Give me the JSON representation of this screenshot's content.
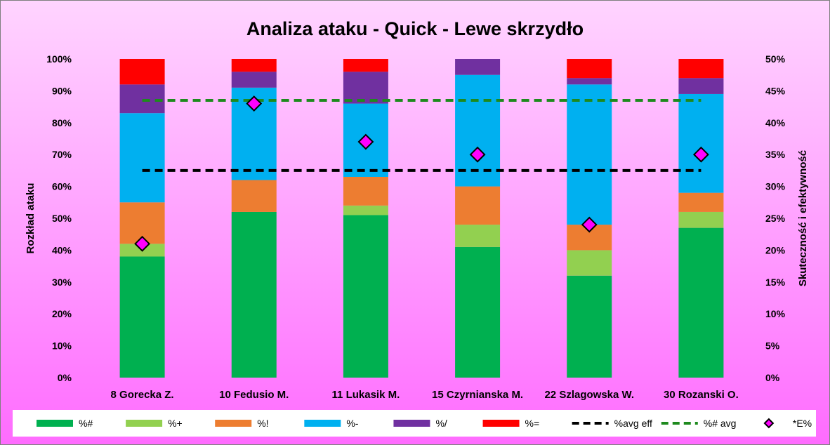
{
  "chart_data": {
    "type": "bar",
    "stacked": true,
    "title": "Analiza ataku - Quick - Lewe skrzydło",
    "ylabel_left": "Rozkład ataku",
    "ylabel_right": "Skuteczność i efektywność",
    "ylim_left": [
      0,
      100
    ],
    "ylim_right": [
      0,
      50
    ],
    "yticks_left": [
      "0%",
      "10%",
      "20%",
      "30%",
      "40%",
      "50%",
      "60%",
      "70%",
      "80%",
      "90%",
      "100%"
    ],
    "yticks_right": [
      "0%",
      "5%",
      "10%",
      "15%",
      "20%",
      "25%",
      "30%",
      "35%",
      "40%",
      "45%",
      "50%"
    ],
    "grid": false,
    "legend_position": "bottom",
    "categories": [
      "8 Gorecka Z.",
      "10 Fedusio M.",
      "11 Lukasik M.",
      "15 Czyrnianska M.",
      "22 Szlagowska W.",
      "30 Rozanski O."
    ],
    "series": [
      {
        "name": "%#",
        "color": "#00b050",
        "values": [
          38,
          52,
          51,
          41,
          32,
          47
        ]
      },
      {
        "name": "%+",
        "color": "#92d050",
        "values": [
          4,
          0,
          3,
          7,
          8,
          5
        ]
      },
      {
        "name": "%!",
        "color": "#ed7d31",
        "values": [
          13,
          10,
          9,
          12,
          8,
          6
        ]
      },
      {
        "name": "%-",
        "color": "#00b0f0",
        "values": [
          28,
          29,
          23,
          35,
          44,
          31
        ]
      },
      {
        "name": "%/",
        "color": "#7030a0",
        "values": [
          9,
          5,
          10,
          5,
          2,
          5
        ]
      },
      {
        "name": "%=",
        "color": "#ff0000",
        "values": [
          8,
          4,
          4,
          0,
          6,
          6
        ]
      }
    ],
    "lines": [
      {
        "name": "%avg eff",
        "color": "#000000",
        "axis": "right",
        "value": 32.5
      },
      {
        "name": "%# avg",
        "color": "#1e8a1e",
        "axis": "right",
        "value": 43.5
      }
    ],
    "markers": {
      "name": "*E%",
      "color": "#ff00ff",
      "axis": "right",
      "values": [
        21,
        43,
        37,
        35,
        24,
        35
      ]
    }
  }
}
